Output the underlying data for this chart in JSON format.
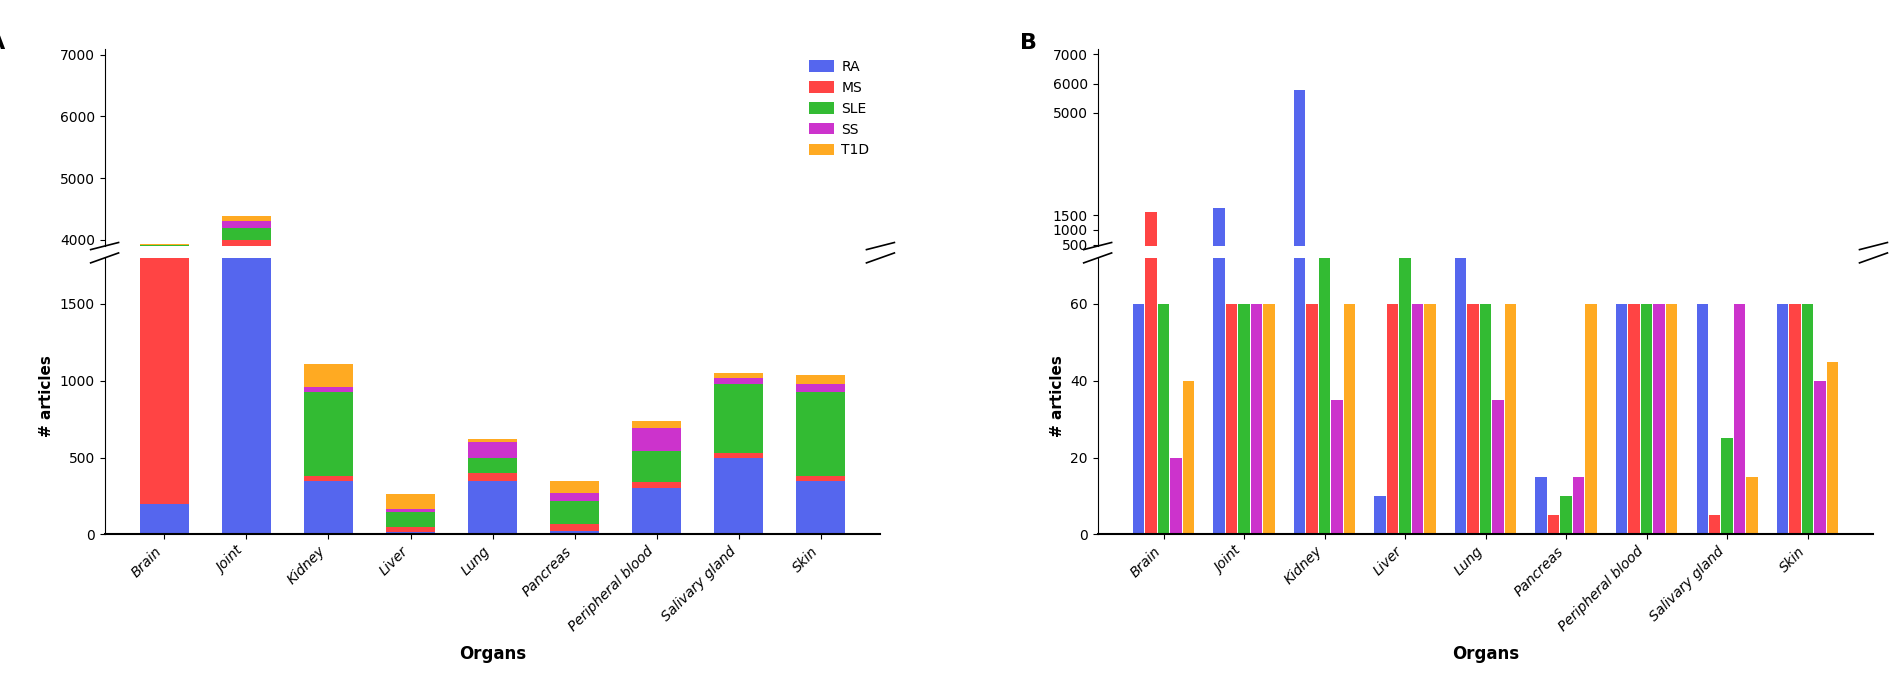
{
  "organs": [
    "Brain",
    "Joint",
    "Kidney",
    "Liver",
    "Lung",
    "Pancreas",
    "Peripheral blood",
    "Salivary gland",
    "Skin"
  ],
  "diseases": [
    "RA",
    "MS",
    "SLE",
    "SS",
    "T1D"
  ],
  "colors": [
    "#5566ee",
    "#ff4444",
    "#33bb33",
    "#cc33cc",
    "#ffaa22"
  ],
  "stacks_a": {
    "RA": [
      200,
      3900,
      350,
      15,
      350,
      20,
      300,
      500,
      350
    ],
    "MS": [
      3700,
      100,
      30,
      30,
      50,
      50,
      40,
      30,
      30
    ],
    "SLE": [
      15,
      200,
      550,
      100,
      100,
      150,
      200,
      450,
      550
    ],
    "SS": [
      10,
      100,
      30,
      20,
      100,
      50,
      150,
      40,
      50
    ],
    "T1D": [
      10,
      80,
      150,
      100,
      20,
      80,
      50,
      30,
      60
    ]
  },
  "bars_b": {
    "RA": [
      60,
      1750,
      5800,
      10,
      450,
      15,
      60,
      60,
      60
    ],
    "MS": [
      1600,
      60,
      60,
      60,
      60,
      5,
      60,
      5,
      60
    ],
    "SLE": [
      60,
      60,
      175,
      160,
      60,
      10,
      60,
      25,
      60
    ],
    "SS": [
      20,
      60,
      35,
      60,
      35,
      15,
      60,
      60,
      40
    ],
    "T1D": [
      40,
      60,
      60,
      60,
      60,
      60,
      60,
      15,
      45
    ]
  },
  "ylabel": "# articles",
  "xlabel": "Organs",
  "legend_labels": [
    "RA",
    "MS",
    "SLE",
    "SS",
    "T1D"
  ]
}
